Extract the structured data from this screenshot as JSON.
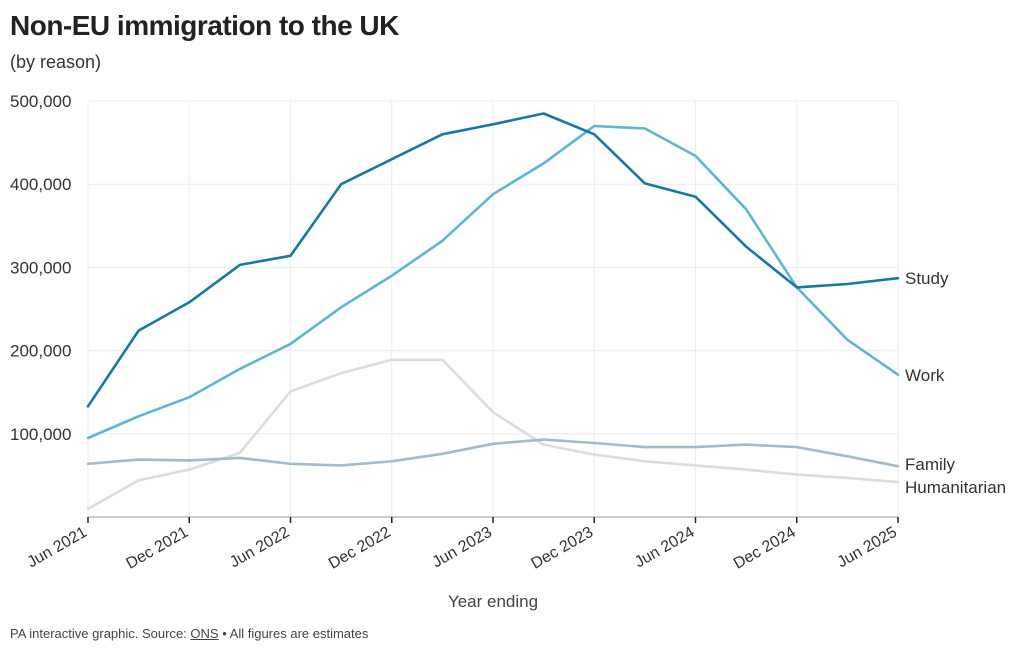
{
  "header": {
    "title": "Non-EU immigration to the UK",
    "subtitle": "(by reason)"
  },
  "footer": {
    "prefix": "PA interactive graphic. Source: ",
    "source_link": "ONS",
    "suffix": " • All figures are estimates"
  },
  "colors": {
    "study": "#1679a5",
    "work": "#5cb6d6",
    "family": "#a3bbc8",
    "humanitarian": "#dcdcdc",
    "grid": "#ececec",
    "axis": "#222222"
  },
  "chart_data": {
    "type": "line",
    "title": "Non-EU immigration to the UK",
    "subtitle": "(by reason)",
    "xlabel": "Year ending",
    "ylabel": "",
    "x": [
      "Jun 2021",
      "Sep 2021",
      "Dec 2021",
      "Mar 2022",
      "Jun 2022",
      "Sep 2022",
      "Dec 2022",
      "Mar 2023",
      "Jun 2023",
      "Sep 2023",
      "Dec 2023",
      "Mar 2024",
      "Jun 2024",
      "Sep 2024",
      "Dec 2024",
      "Mar 2025",
      "Jun 2025"
    ],
    "x_tick_labels": [
      "Jun 2021",
      "Dec 2021",
      "Jun 2022",
      "Dec 2022",
      "Jun 2023",
      "Dec 2023",
      "Jun 2024",
      "Dec 2024",
      "Jun 2025"
    ],
    "y_tick_labels": [
      "100,000",
      "200,000",
      "300,000",
      "400,000",
      "500,000"
    ],
    "y_ticks": [
      100000,
      200000,
      300000,
      400000,
      500000
    ],
    "ylim": [
      0,
      500000
    ],
    "grid": true,
    "legend": "direct labels at line ends",
    "series": [
      {
        "name": "Study",
        "color": "#1679a5",
        "values": [
          133000,
          224000,
          258000,
          303000,
          314000,
          400000,
          430000,
          460000,
          472000,
          485000,
          460000,
          401000,
          385000,
          325000,
          276000,
          280000,
          287000
        ]
      },
      {
        "name": "Work",
        "color": "#5cb6d6",
        "values": [
          95000,
          121000,
          144000,
          178000,
          208000,
          252000,
          290000,
          332000,
          388000,
          425000,
          470000,
          467000,
          434000,
          370000,
          276000,
          213000,
          171000
        ]
      },
      {
        "name": "Family",
        "color": "#a3bbc8",
        "values": [
          64000,
          69000,
          68000,
          71000,
          64000,
          62000,
          67000,
          76000,
          88000,
          93000,
          89000,
          84000,
          84000,
          87000,
          84000,
          73000,
          61000
        ]
      },
      {
        "name": "Humanitarian",
        "color": "#dcdcdc",
        "values": [
          10000,
          44000,
          57000,
          77000,
          151000,
          173000,
          189000,
          189000,
          126000,
          87000,
          75000,
          67000,
          62000,
          57000,
          51000,
          47000,
          42000
        ]
      }
    ]
  }
}
